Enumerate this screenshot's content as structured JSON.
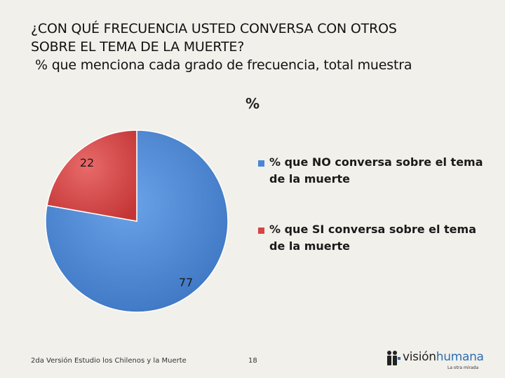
{
  "title_lines": [
    "¿CON QUÉ FRECUENCIA USTED CONVERSA CON OTROS",
    "SOBRE EL TEMA DE LA MUERTE?"
  ],
  "subtitle": "% que menciona cada grado de frecuencia, total muestra",
  "chart_data": {
    "type": "pie",
    "title": "%",
    "slices": [
      {
        "label": "% que NO conversa sobre el tema de la muerte",
        "value": 77,
        "color": "#4a86d6"
      },
      {
        "label": "% que SI conversa sobre el tema de la muerte",
        "value": 22,
        "color": "#d64545"
      }
    ],
    "legend_position": "right"
  },
  "footer": {
    "source": "2da Versión Estudio los Chilenos y la Muerte",
    "page_number": "18"
  },
  "logo": {
    "text_part1": "visión",
    "text_part2": "humana",
    "tagline": "La otra mirada"
  }
}
